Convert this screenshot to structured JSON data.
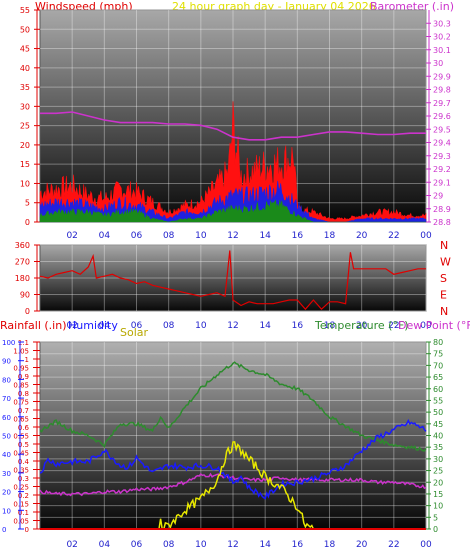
{
  "header": {
    "left_label": "Windspeed (mph)",
    "center_label": "24 hour graph day - January 04 2026",
    "right_label": "Barometer (.in)"
  },
  "colors": {
    "windspeed_label": "#e00000",
    "date_label": "#e0e000",
    "barometer": "#cc33cc",
    "direction": "#e00000",
    "rainfall_label": "#e00000",
    "humidity": "#1a1aff",
    "solar": "#e8e800",
    "temperature": "#2e8b2e",
    "dew_point": "#cc33cc",
    "gust": "#ff1010",
    "wind_avg": "#2020e0",
    "wind_low": "#1a8a1a"
  },
  "bottom_header": {
    "rainfall_label": "Rainfall (.in)",
    "humidity_label": "Humidity",
    "solar_label": "Solar",
    "temperature_label": "Temperature (°F)",
    "dewpoint_label": "Dew Point (°F)"
  },
  "chart_data": [
    {
      "type": "line",
      "title": "24 hour graph day - January 04 2026",
      "x_tick_labels": [
        "02",
        "04",
        "06",
        "08",
        "10",
        "12",
        "14",
        "16",
        "18",
        "20",
        "22",
        "00"
      ],
      "xlim": [
        0,
        24
      ],
      "left_axis": {
        "label": "Windspeed (mph)",
        "ylim": [
          0,
          55
        ],
        "ticks": [
          0,
          5,
          10,
          15,
          20,
          25,
          30,
          35,
          40,
          45,
          50,
          55
        ]
      },
      "right_axis": {
        "label": "Barometer (.in)",
        "ylim": [
          28.8,
          30.4
        ],
        "ticks": [
          "28.8",
          "28.9",
          "29",
          "29.1",
          "29.2",
          "29.3",
          "29.4",
          "29.5",
          "29.6",
          "29.7",
          "29.8",
          "29.9",
          "30",
          "30.1",
          "30.2",
          "30.3"
        ]
      },
      "series": [
        {
          "name": "Barometer",
          "axis": "right",
          "x": [
            0,
            1,
            2,
            3,
            4,
            5,
            6,
            7,
            8,
            9,
            10,
            11,
            12,
            13,
            14,
            15,
            16,
            17,
            18,
            19,
            20,
            21,
            22,
            23,
            24
          ],
          "values": [
            29.62,
            29.62,
            29.63,
            29.6,
            29.57,
            29.55,
            29.55,
            29.55,
            29.54,
            29.54,
            29.53,
            29.5,
            29.44,
            29.42,
            29.42,
            29.44,
            29.44,
            29.46,
            29.48,
            29.48,
            29.47,
            29.46,
            29.46,
            29.47,
            29.47
          ]
        },
        {
          "name": "Gust",
          "axis": "left",
          "x": [
            0,
            1,
            2,
            3,
            4,
            5,
            6,
            7,
            8,
            9,
            10,
            11,
            11.7,
            12,
            12.5,
            13,
            14,
            15,
            15.8,
            16,
            17,
            18,
            19,
            20,
            21,
            22,
            23,
            24
          ],
          "values": [
            9,
            10,
            11,
            8,
            7,
            10,
            9,
            6,
            3,
            5,
            6,
            11,
            15,
            29,
            14,
            15,
            17,
            18,
            20,
            4,
            3,
            1,
            1,
            2,
            3,
            3,
            2,
            2
          ]
        },
        {
          "name": "Average",
          "axis": "left",
          "x": [
            0,
            1,
            2,
            3,
            4,
            5,
            6,
            7,
            8,
            9,
            10,
            11,
            12,
            13,
            14,
            15,
            16,
            17,
            18,
            19,
            20,
            21,
            22,
            23,
            24
          ],
          "values": [
            5,
            6,
            6,
            5,
            4,
            6,
            5,
            3,
            1,
            3,
            3,
            6,
            8,
            8,
            9,
            10,
            5,
            1,
            0,
            0,
            1,
            1,
            1,
            1,
            1
          ]
        },
        {
          "name": "Low",
          "axis": "left",
          "x": [
            0,
            1,
            2,
            3,
            4,
            5,
            6,
            7,
            8,
            9,
            10,
            11,
            12,
            13,
            14,
            15,
            16,
            17,
            18,
            19,
            20,
            21,
            22,
            23,
            24
          ],
          "values": [
            2,
            3,
            3,
            3,
            2,
            3,
            3,
            1,
            0,
            1,
            1,
            3,
            4,
            4,
            5,
            5,
            2,
            0,
            0,
            0,
            0,
            0,
            0,
            0,
            0
          ]
        }
      ]
    },
    {
      "type": "line",
      "title": "",
      "x_tick_labels": [
        "02",
        "04",
        "06",
        "08",
        "10",
        "12",
        "14",
        "16",
        "18",
        "20",
        "22",
        "00"
      ],
      "xlim": [
        0,
        24
      ],
      "left_axis": {
        "ylim": [
          0,
          360
        ],
        "ticks": [
          0,
          90,
          180,
          270,
          360
        ]
      },
      "right_axis": {
        "tick_labels": [
          "N",
          "W",
          "S",
          "E",
          "N"
        ]
      },
      "series": [
        {
          "name": "Wind Direction",
          "axis": "left",
          "x": [
            0,
            0.5,
            1,
            1.5,
            2,
            2.5,
            3,
            3.3,
            3.5,
            4,
            4.5,
            5,
            5.5,
            6,
            6.5,
            7,
            7.5,
            8,
            8.5,
            9,
            9.5,
            10,
            10.5,
            11,
            11.5,
            11.8,
            12,
            12.5,
            13,
            13.5,
            14,
            14.5,
            15,
            15.5,
            16,
            16.5,
            17,
            17.5,
            18,
            18.5,
            19,
            19.3,
            19.5,
            20,
            20.5,
            21,
            21.5,
            22,
            22.5,
            23,
            23.5,
            24
          ],
          "values": [
            190,
            180,
            200,
            210,
            220,
            200,
            240,
            300,
            180,
            190,
            200,
            180,
            170,
            150,
            160,
            140,
            130,
            120,
            110,
            100,
            90,
            80,
            90,
            100,
            80,
            330,
            60,
            30,
            50,
            40,
            40,
            40,
            50,
            60,
            60,
            10,
            60,
            10,
            50,
            50,
            40,
            320,
            230,
            230,
            230,
            230,
            230,
            200,
            210,
            220,
            230,
            230
          ]
        }
      ]
    },
    {
      "type": "line",
      "title": "",
      "x_tick_labels": [
        "02",
        "04",
        "06",
        "08",
        "10",
        "12",
        "14",
        "16",
        "18",
        "20",
        "22",
        "00"
      ],
      "xlim": [
        0,
        24
      ],
      "left_axis_rainfall": {
        "label": "Rainfall (.in)",
        "ylim": [
          0,
          1.1
        ],
        "ticks": [
          "0",
          "0.05",
          "0.1",
          "0.15",
          "0.2",
          "0.25",
          "0.3",
          "0.35",
          "0.4",
          "0.45",
          "0.5",
          "0.55",
          "0.6",
          "0.65",
          "0.7",
          "0.75",
          "0.8",
          "0.85",
          "0.9",
          "0.95",
          "1",
          "1.05",
          "1.1"
        ]
      },
      "left_axis_humidity": {
        "label": "Humidity",
        "ylim": [
          0,
          100
        ],
        "ticks": [
          0,
          10,
          20,
          30,
          40,
          50,
          60,
          70,
          80,
          90,
          100
        ]
      },
      "right_axis": {
        "label": "Temperature (°F) Dew Point (°F)",
        "ylim": [
          0,
          80
        ],
        "ticks": [
          0,
          5,
          10,
          15,
          20,
          25,
          30,
          35,
          40,
          45,
          50,
          55,
          60,
          65,
          70,
          75,
          80
        ]
      },
      "series": [
        {
          "name": "Temperature",
          "axis": "right",
          "x": [
            0,
            0.5,
            1,
            2,
            3,
            4,
            5,
            6,
            7,
            7.5,
            8,
            9,
            10,
            11,
            12,
            13,
            14,
            15,
            16,
            17,
            18,
            19,
            20,
            21,
            22,
            23,
            24
          ],
          "values": [
            42,
            44,
            46,
            42,
            40,
            36,
            45,
            45,
            42,
            48,
            43,
            52,
            60,
            66,
            71,
            68,
            66,
            62,
            60,
            55,
            48,
            44,
            40,
            38,
            36,
            35,
            34
          ]
        },
        {
          "name": "Dew Point",
          "axis": "right",
          "x": [
            0,
            1,
            2,
            3,
            4,
            5,
            6,
            7,
            8,
            9,
            10,
            11,
            12,
            13,
            14,
            15,
            16,
            17,
            18,
            19,
            20,
            21,
            22,
            23,
            24
          ],
          "values": [
            16,
            15,
            15,
            15,
            16,
            16,
            17,
            17,
            18,
            20,
            23,
            23,
            22,
            21,
            21,
            22,
            21,
            21,
            21,
            21,
            21,
            20,
            20,
            19,
            18
          ]
        },
        {
          "name": "Humidity",
          "axis": "humidity",
          "x": [
            0,
            0.5,
            1,
            2,
            3,
            4,
            5,
            5.5,
            6,
            7,
            8,
            9,
            10,
            11,
            12,
            12.5,
            13,
            14,
            15,
            16,
            17,
            18,
            19,
            20,
            21,
            22,
            23,
            24
          ],
          "values": [
            30,
            37,
            35,
            36,
            36,
            42,
            34,
            33,
            38,
            30,
            34,
            33,
            34,
            33,
            25,
            28,
            22,
            17,
            24,
            25,
            27,
            30,
            34,
            42,
            49,
            53,
            57,
            53
          ]
        },
        {
          "name": "Solar",
          "axis": "humidity",
          "x": [
            0,
            7.4,
            7.5,
            7.6,
            8,
            9,
            10,
            11,
            11.5,
            12,
            12.5,
            13,
            13.5,
            14,
            15,
            16,
            16.5,
            17,
            24
          ],
          "values": [
            0,
            0,
            6,
            0,
            2,
            10,
            16,
            26,
            38,
            45,
            42,
            37,
            33,
            28,
            22,
            12,
            2,
            0,
            0
          ]
        },
        {
          "name": "Rainfall",
          "axis": "rainfall",
          "x": [
            0,
            24
          ],
          "values": [
            0,
            0
          ]
        }
      ]
    }
  ]
}
